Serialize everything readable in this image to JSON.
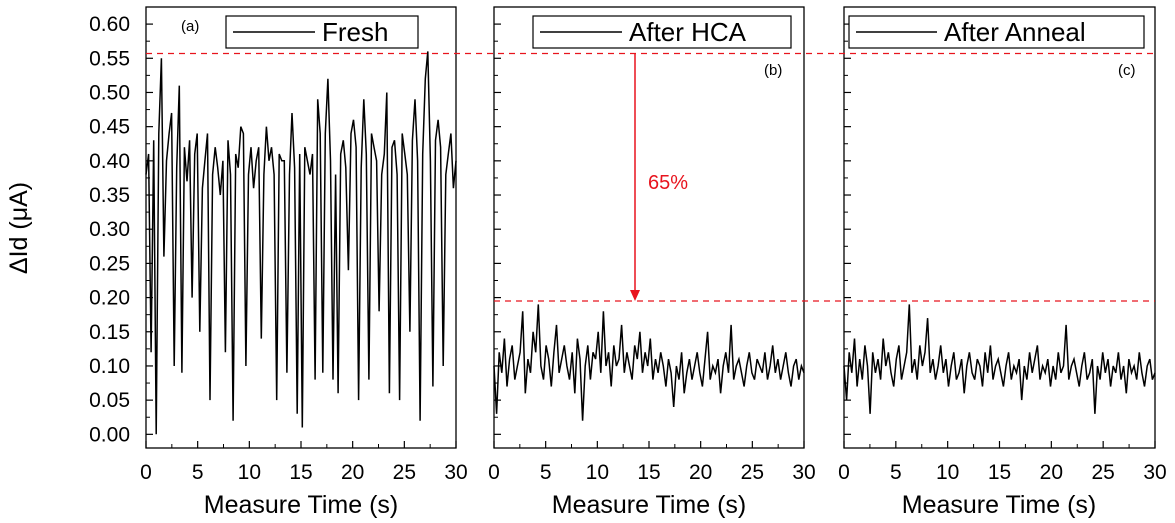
{
  "chart_data": {
    "type": "line",
    "shared": {
      "xlabel": "Measure Time (s)",
      "ylabel": "ΔId (μA)",
      "xlim": [
        0,
        30
      ],
      "ylim": [
        -0.02,
        0.625
      ],
      "xticks": [
        "0",
        "5",
        "10",
        "15",
        "20",
        "25",
        "30"
      ],
      "xtick_values": [
        0,
        5,
        10,
        15,
        20,
        25,
        30
      ],
      "yticks": [
        "0.00",
        "0.05",
        "0.10",
        "0.15",
        "0.20",
        "0.25",
        "0.30",
        "0.35",
        "0.40",
        "0.45",
        "0.50",
        "0.55",
        "0.60"
      ],
      "ytick_values": [
        0.0,
        0.05,
        0.1,
        0.15,
        0.2,
        0.25,
        0.3,
        0.35,
        0.4,
        0.45,
        0.5,
        0.55,
        0.6
      ],
      "grid": false,
      "line_color": "#000000",
      "ref_line_color": "#e8141e",
      "reference_lines": [
        0.557,
        0.195
      ]
    },
    "panels": [
      {
        "tag": "(a)",
        "legend": "Fresh",
        "legend_location": "top-right",
        "series": [
          {
            "name": "Fresh",
            "stats": {
              "baseline": 0.405,
              "noise": 0.035,
              "min": 0.0,
              "max": 0.56,
              "dip_probability": 0.1,
              "spike_probability": 0.04
            },
            "samples": [
              0.38,
              0.41,
              0.12,
              0.43,
              0.0,
              0.44,
              0.55,
              0.26,
              0.4,
              0.44,
              0.47,
              0.1,
              0.39,
              0.51,
              0.09,
              0.42,
              0.37,
              0.43,
              0.2,
              0.41,
              0.44,
              0.15,
              0.36,
              0.4,
              0.44,
              0.05,
              0.38,
              0.42,
              0.39,
              0.35,
              0.4,
              0.12,
              0.43,
              0.38,
              0.02,
              0.41,
              0.39,
              0.45,
              0.44,
              0.1,
              0.38,
              0.42,
              0.36,
              0.4,
              0.42,
              0.14,
              0.38,
              0.45,
              0.4,
              0.42,
              0.38,
              0.05,
              0.41,
              0.4,
              0.4,
              0.09,
              0.38,
              0.47,
              0.39,
              0.03,
              0.41,
              0.01,
              0.42,
              0.4,
              0.38,
              0.41,
              0.08,
              0.49,
              0.44,
              0.09,
              0.44,
              0.52,
              0.4,
              0.08,
              0.38,
              0.06,
              0.41,
              0.43,
              0.39,
              0.24,
              0.44,
              0.46,
              0.42,
              0.05,
              0.39,
              0.49,
              0.41,
              0.08,
              0.44,
              0.42,
              0.4,
              0.18,
              0.38,
              0.41,
              0.5,
              0.06,
              0.42,
              0.43,
              0.38,
              0.05,
              0.44,
              0.41,
              0.38,
              0.15,
              0.43,
              0.49,
              0.4,
              0.02,
              0.41,
              0.52,
              0.56,
              0.4,
              0.07,
              0.43,
              0.46,
              0.42,
              0.1,
              0.38,
              0.41,
              0.44,
              0.36,
              0.4
            ]
          }
        ]
      },
      {
        "tag": "(b)",
        "legend": "After HCA",
        "legend_location": "top-right",
        "annotation": "65%",
        "series": [
          {
            "name": "After HCA",
            "stats": {
              "baseline": 0.105,
              "noise": 0.025,
              "min": 0.0,
              "max": 0.19
            },
            "samples": [
              0.1,
              0.03,
              0.12,
              0.09,
              0.14,
              0.07,
              0.11,
              0.13,
              0.08,
              0.1,
              0.12,
              0.18,
              0.06,
              0.11,
              0.09,
              0.15,
              0.12,
              0.19,
              0.1,
              0.08,
              0.13,
              0.11,
              0.07,
              0.12,
              0.16,
              0.09,
              0.11,
              0.13,
              0.1,
              0.08,
              0.12,
              0.06,
              0.14,
              0.11,
              0.02,
              0.1,
              0.13,
              0.08,
              0.12,
              0.11,
              0.15,
              0.09,
              0.18,
              0.1,
              0.12,
              0.07,
              0.13,
              0.1,
              0.11,
              0.16,
              0.09,
              0.12,
              0.1,
              0.08,
              0.13,
              0.11,
              0.15,
              0.09,
              0.12,
              0.1,
              0.14,
              0.08,
              0.11,
              0.09,
              0.12,
              0.1,
              0.07,
              0.11,
              0.09,
              0.04,
              0.1,
              0.08,
              0.12,
              0.06,
              0.09,
              0.11,
              0.08,
              0.1,
              0.12,
              0.09,
              0.07,
              0.11,
              0.15,
              0.08,
              0.1,
              0.09,
              0.11,
              0.06,
              0.1,
              0.12,
              0.09,
              0.16,
              0.08,
              0.1,
              0.11,
              0.09,
              0.07,
              0.1,
              0.12,
              0.09,
              0.08,
              0.11,
              0.1,
              0.09,
              0.12,
              0.08,
              0.1,
              0.13,
              0.09,
              0.11,
              0.08,
              0.1,
              0.12,
              0.09,
              0.07,
              0.1,
              0.11,
              0.08,
              0.1,
              0.09
            ]
          }
        ]
      },
      {
        "tag": "(c)",
        "legend": "After Anneal",
        "legend_location": "top-right",
        "series": [
          {
            "name": "After Anneal",
            "stats": {
              "baseline": 0.09,
              "noise": 0.025,
              "min": 0.0,
              "max": 0.19
            },
            "samples": [
              0.1,
              0.05,
              0.12,
              0.09,
              0.14,
              0.07,
              0.11,
              0.08,
              0.13,
              0.1,
              0.03,
              0.12,
              0.09,
              0.11,
              0.08,
              0.14,
              0.1,
              0.12,
              0.09,
              0.07,
              0.11,
              0.13,
              0.08,
              0.1,
              0.12,
              0.19,
              0.09,
              0.11,
              0.08,
              0.13,
              0.1,
              0.12,
              0.17,
              0.09,
              0.11,
              0.08,
              0.1,
              0.13,
              0.09,
              0.11,
              0.07,
              0.1,
              0.12,
              0.08,
              0.09,
              0.11,
              0.06,
              0.1,
              0.12,
              0.09,
              0.08,
              0.11,
              0.1,
              0.07,
              0.12,
              0.09,
              0.13,
              0.08,
              0.1,
              0.11,
              0.09,
              0.07,
              0.1,
              0.12,
              0.08,
              0.1,
              0.09,
              0.11,
              0.05,
              0.1,
              0.08,
              0.12,
              0.09,
              0.11,
              0.13,
              0.08,
              0.1,
              0.09,
              0.11,
              0.07,
              0.1,
              0.08,
              0.12,
              0.09,
              0.1,
              0.16,
              0.08,
              0.1,
              0.11,
              0.09,
              0.07,
              0.1,
              0.12,
              0.08,
              0.09,
              0.11,
              0.03,
              0.1,
              0.08,
              0.12,
              0.09,
              0.11,
              0.07,
              0.1,
              0.09,
              0.12,
              0.08,
              0.1,
              0.06,
              0.11,
              0.09,
              0.1,
              0.08,
              0.12,
              0.09,
              0.07,
              0.1,
              0.11,
              0.08,
              0.09
            ]
          }
        ]
      }
    ]
  }
}
